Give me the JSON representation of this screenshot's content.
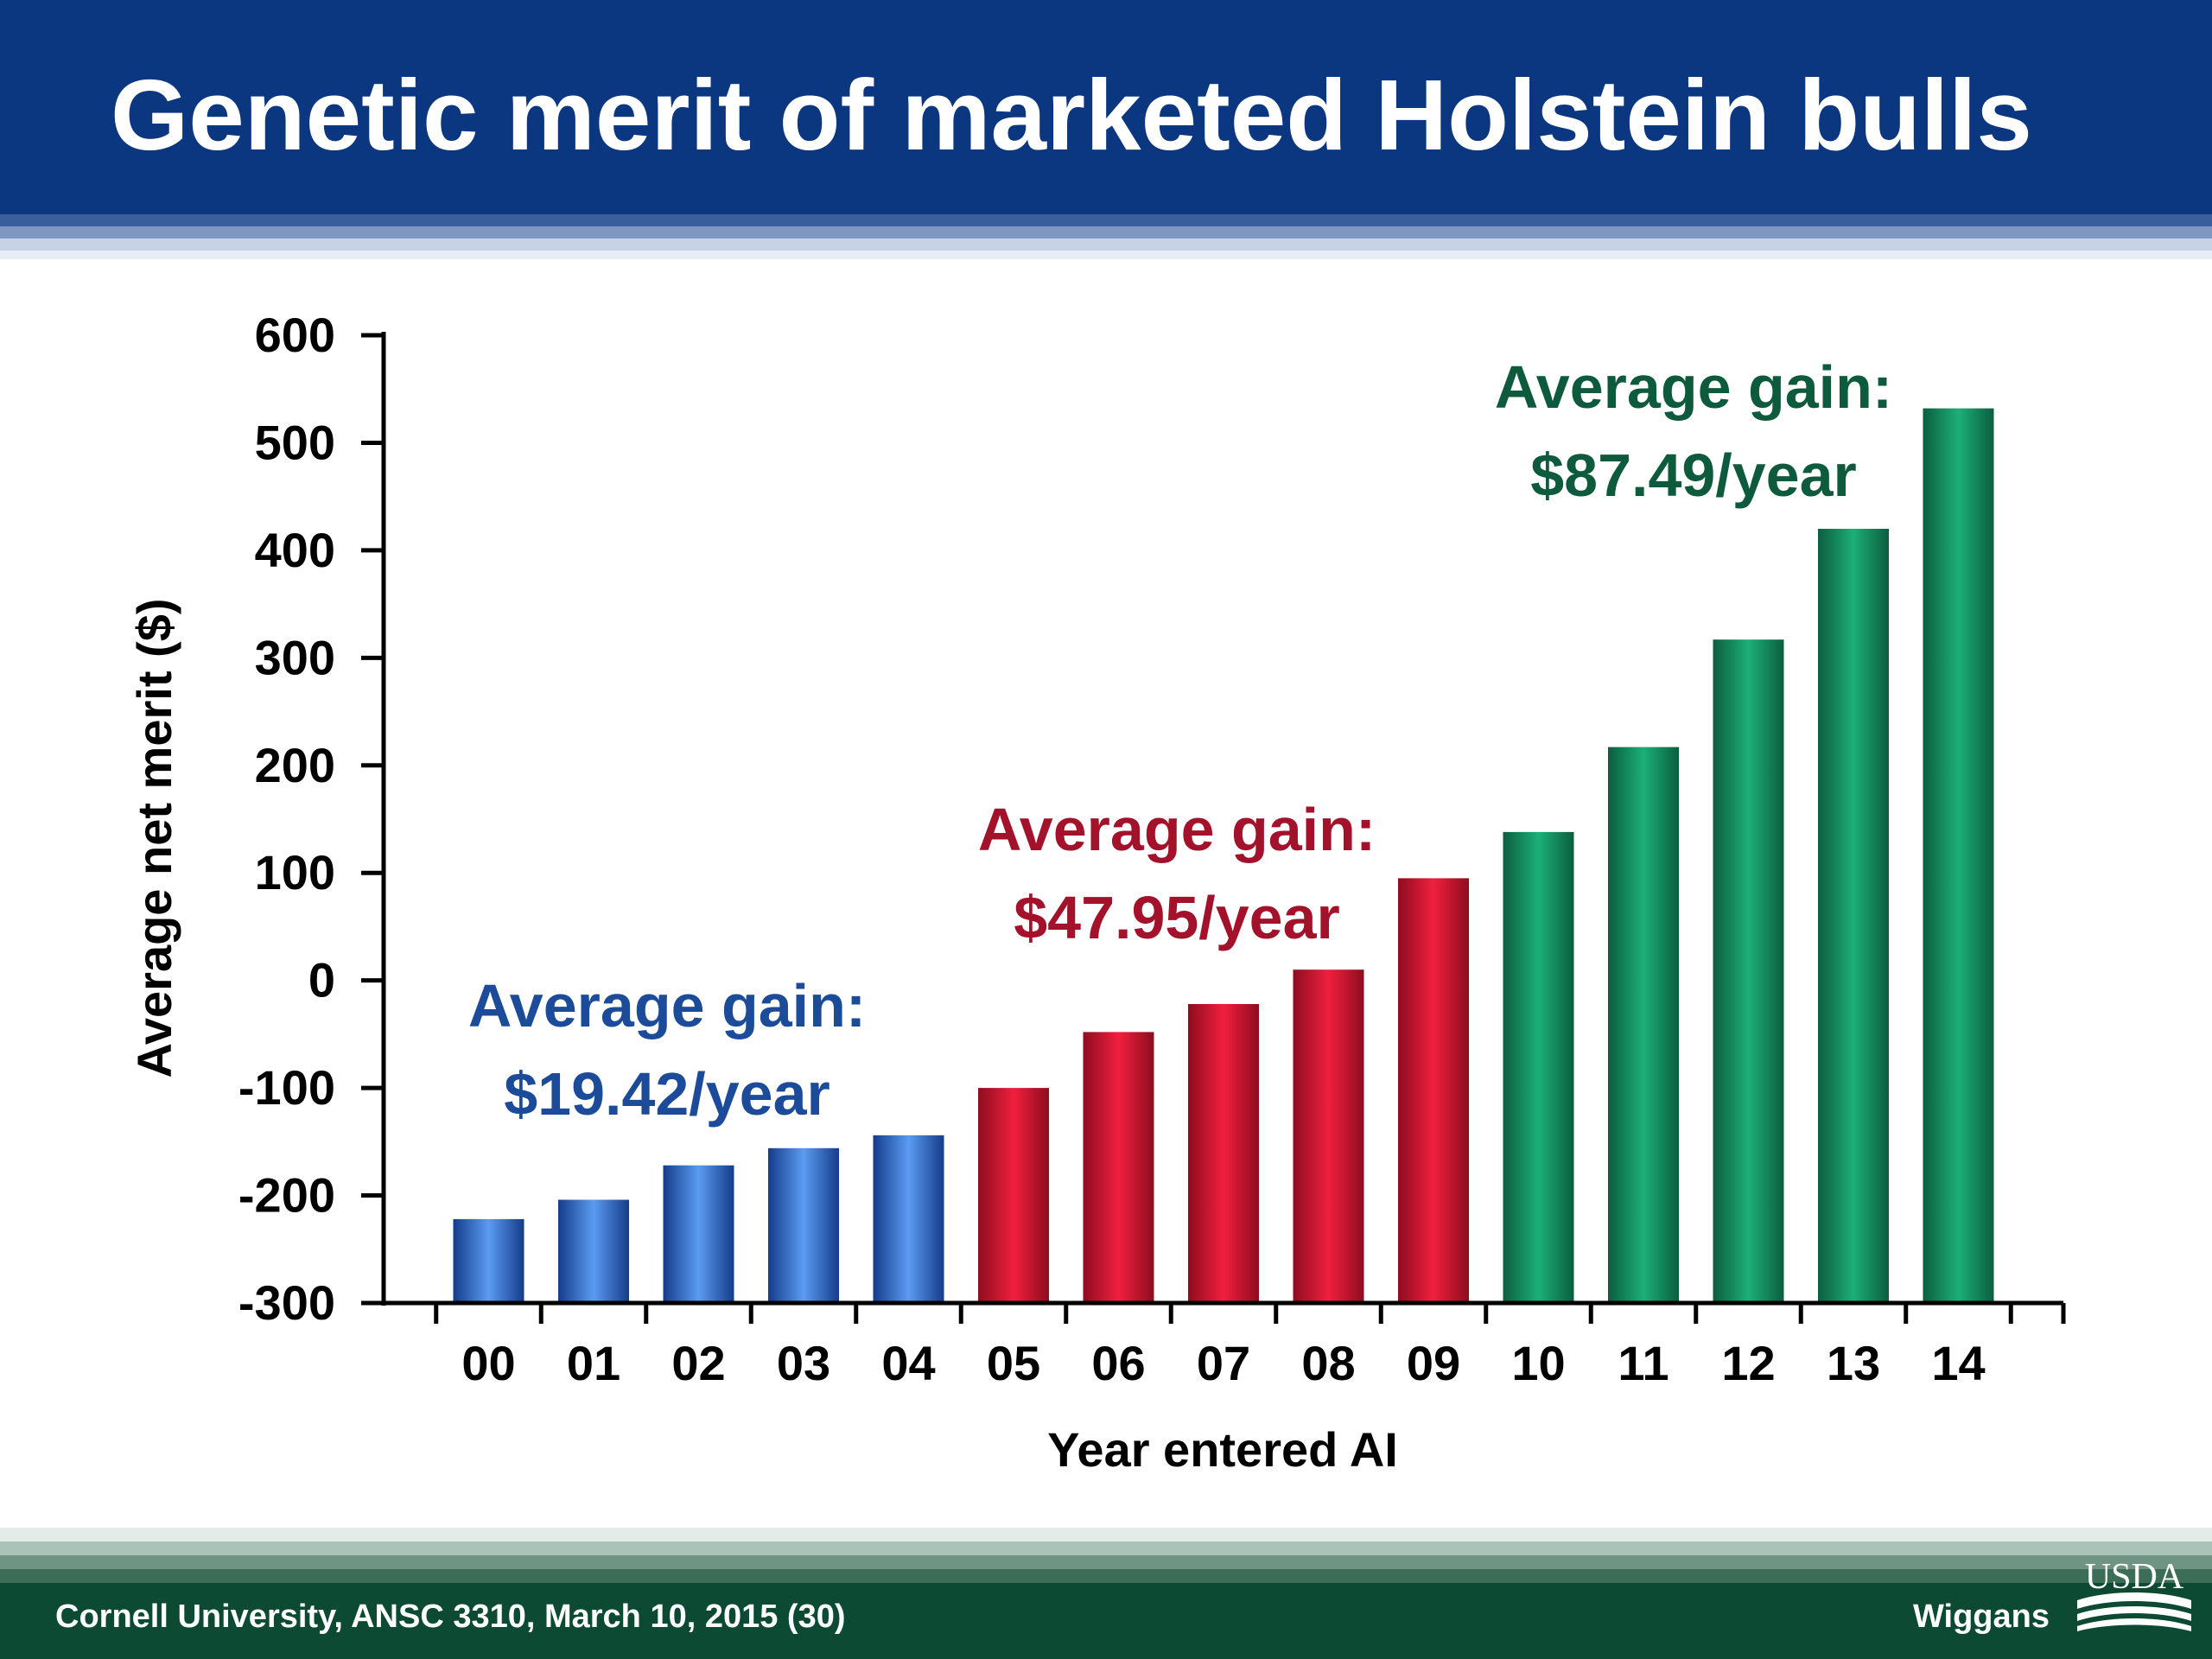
{
  "slide": {
    "title": "Genetic merit of marketed Holstein bulls",
    "footer_left": "Cornell University, ANSC 3310, March 10, 2015 (30)",
    "footer_right": "Wiggans",
    "logo_text": "USDA"
  },
  "colors": {
    "header_blue": "#0b3680",
    "footer_green": "#0c4a34",
    "blue_series": "#3f7fd9",
    "red_series": "#d8122e",
    "green_series": "#138f62",
    "blue_annotation": "#1c4b9a",
    "red_annotation": "#a3122a",
    "green_annotation": "#0d5a3c"
  },
  "chart_data": {
    "type": "bar",
    "xlabel": "Year entered AI",
    "ylabel": "Average net merit ($)",
    "ylim": [
      -300,
      600
    ],
    "yticks": [
      600,
      500,
      400,
      300,
      200,
      100,
      0,
      -100,
      -200,
      -300
    ],
    "categories": [
      "00",
      "01",
      "02",
      "03",
      "04",
      "05",
      "06",
      "07",
      "08",
      "09",
      "10",
      "11",
      "12",
      "13",
      "14"
    ],
    "values": [
      -222,
      -204,
      -172,
      -156,
      -144,
      -100,
      -48,
      -22,
      10,
      95,
      138,
      217,
      317,
      420,
      532
    ],
    "bar_colors": [
      "blue",
      "blue",
      "blue",
      "blue",
      "blue",
      "red",
      "red",
      "red",
      "red",
      "red",
      "green",
      "green",
      "green",
      "green",
      "green"
    ],
    "legend": "none",
    "grid": false,
    "annotations": [
      {
        "line1": "Average gain:",
        "line2": "$19.42/year",
        "color": "blue"
      },
      {
        "line1": "Average gain:",
        "line2": "$47.95/year",
        "color": "red"
      },
      {
        "line1": "Average gain:",
        "line2": "$87.49/year",
        "color": "green"
      }
    ]
  }
}
